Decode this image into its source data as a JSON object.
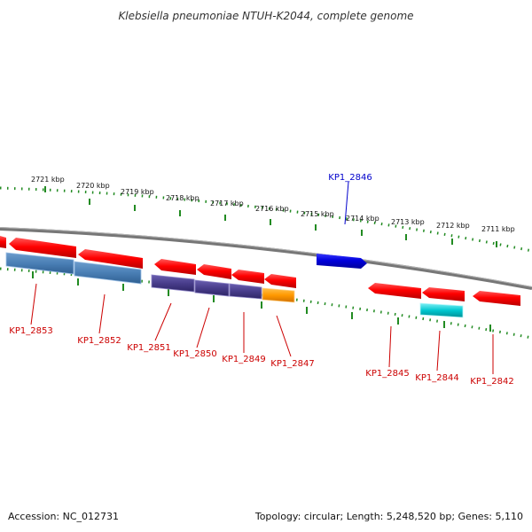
{
  "title": "Klebsiella pneumoniae NTUH-K2044, complete genome",
  "footer": {
    "accession": "Accession: NC_012731",
    "summary": "Topology: circular; Length: 5,248,520 bp; Genes: 5,110"
  },
  "colors": {
    "backbone": "#888888",
    "tick": "#228b22",
    "red_gene": "#ff0000",
    "red_label": "#cc0000",
    "blue_gene": "#0000dd",
    "blue_label": "#0000cc",
    "steelblue_gene": "#4a7fb5",
    "purple_gene": "#483d8b",
    "orange_gene": "#ff9900",
    "cyan_gene": "#00c8d0"
  },
  "kbp_labels": [
    "2721 kbp",
    "2720 kbp",
    "2719 kbp",
    "2718 kbp",
    "2717 kbp",
    "2716 kbp",
    "2715 kbp",
    "2714 kbp",
    "2713 kbp",
    "2712 kbp",
    "2711 kbp"
  ],
  "gene_labels": [
    {
      "text": "KP1_2853",
      "color": "red"
    },
    {
      "text": "KP1_2852",
      "color": "red"
    },
    {
      "text": "KP1_2851",
      "color": "red"
    },
    {
      "text": "KP1_2850",
      "color": "red"
    },
    {
      "text": "KP1_2849",
      "color": "red"
    },
    {
      "text": "KP1_2847",
      "color": "red"
    },
    {
      "text": "KP1_2846",
      "color": "blue"
    },
    {
      "text": "KP1_2845",
      "color": "red"
    },
    {
      "text": "KP1_2844",
      "color": "red"
    },
    {
      "text": "KP1_2842",
      "color": "red"
    }
  ]
}
